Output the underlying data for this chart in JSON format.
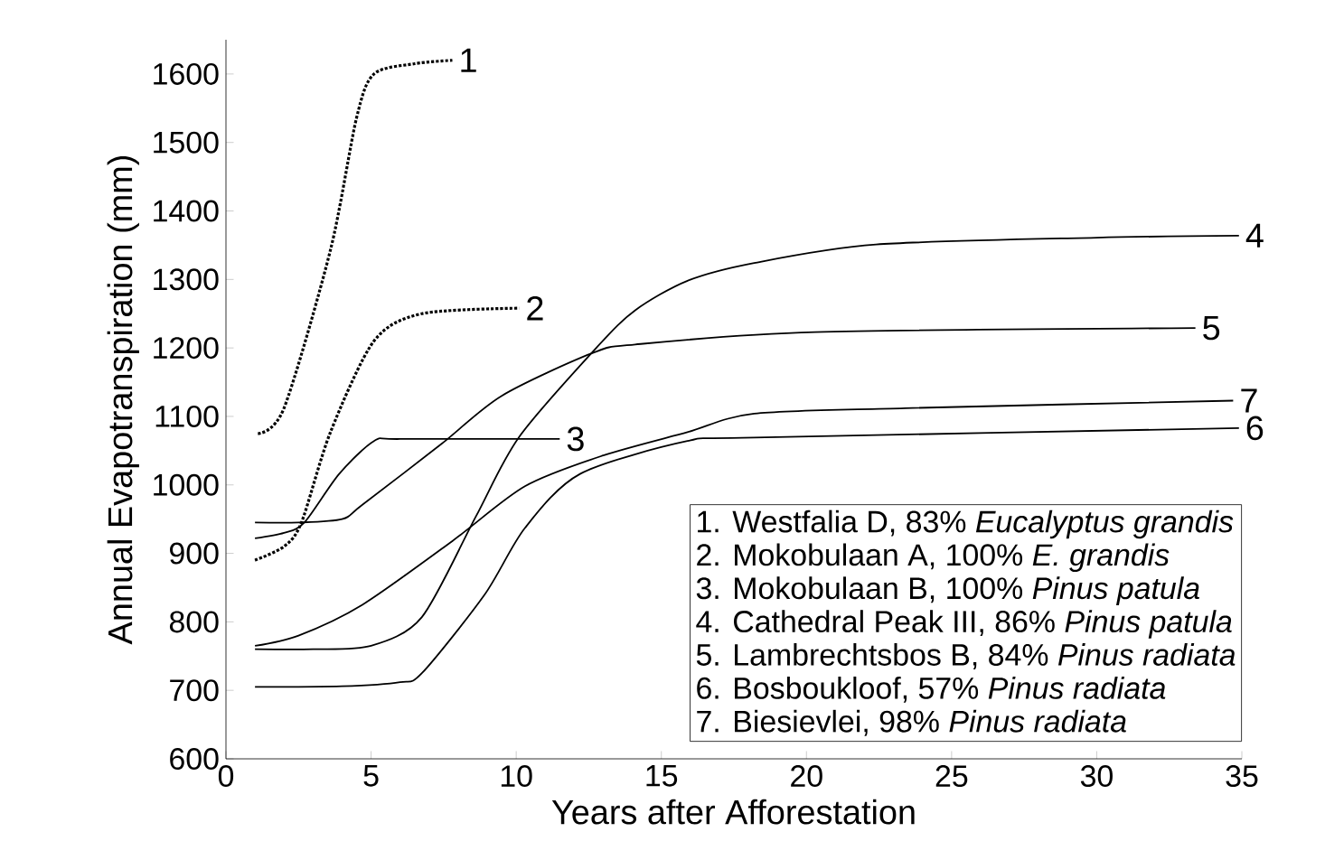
{
  "chart_data": {
    "type": "line",
    "xlabel": "Years after Afforestation",
    "ylabel": "Annual Evapotranspiration (mm)",
    "xlim": [
      0,
      35
    ],
    "ylim": [
      600,
      1650
    ],
    "xticks": [
      0,
      5,
      10,
      15,
      20,
      25,
      30,
      35
    ],
    "yticks": [
      600,
      700,
      800,
      900,
      1000,
      1100,
      1200,
      1300,
      1400,
      1500,
      1600
    ],
    "grid": false,
    "legend": false,
    "marker": "none",
    "series": [
      {
        "name": "1",
        "color": "#000000",
        "line_style": "dotted",
        "x": [
          1.1,
          2,
          3.6,
          4.5,
          5.1,
          6.5,
          7.8
        ],
        "values": [
          1075,
          1112,
          1343,
          1536,
          1600,
          1615,
          1620
        ]
      },
      {
        "name": "2",
        "color": "#000000",
        "line_style": "dotted",
        "x": [
          1,
          2,
          2.6,
          3.6,
          5.1,
          6.75,
          10.1
        ],
        "values": [
          890,
          910,
          945,
          1077,
          1210,
          1250,
          1258
        ]
      },
      {
        "name": "3",
        "color": "#000000",
        "line_style": "solid",
        "x": [
          1,
          2,
          2.7,
          3.9,
          5.1,
          6,
          11.5
        ],
        "values": [
          922,
          930,
          945,
          1016,
          1064,
          1067,
          1067
        ]
      },
      {
        "name": "4",
        "color": "#000000",
        "line_style": "solid",
        "x": [
          1,
          3,
          5,
          6.75,
          8.6,
          10.1,
          12.8,
          14.1,
          15.9,
          18.2,
          22.4,
          30,
          34.9
        ],
        "values": [
          760,
          760,
          765,
          807,
          953,
          1070,
          1202,
          1255,
          1298,
          1324,
          1351,
          1361,
          1364
        ]
      },
      {
        "name": "5",
        "color": "#000000",
        "line_style": "solid",
        "x": [
          1,
          2.5,
          4,
          4.7,
          7.4,
          9.5,
          12.6,
          14.1,
          20.3,
          33.4
        ],
        "values": [
          945,
          945,
          950,
          971,
          1059,
          1130,
          1192,
          1205,
          1223,
          1229
        ]
      },
      {
        "name": "6",
        "color": "#000000",
        "line_style": "solid",
        "x": [
          1,
          4,
          6,
          6.75,
          8.9,
          10.3,
          12.2,
          15.9,
          18.2,
          34.9
        ],
        "values": [
          705,
          706,
          712,
          725,
          839,
          937,
          1016,
          1064,
          1069,
          1083
        ]
      },
      {
        "name": "7",
        "color": "#000000",
        "line_style": "solid",
        "x": [
          1,
          2.5,
          4.7,
          7.8,
          10.3,
          13,
          15.9,
          18.2,
          23.4,
          34.7
        ],
        "values": [
          765,
          780,
          825,
          918,
          998,
          1043,
          1077,
          1104,
          1112,
          1123
        ]
      }
    ],
    "annotations": [
      "1. Westfalia D, 83% *Eucalyptus grandis*",
      "2. Mokobulaan A, 100% *E. grandis*",
      "3. Mokobulaan B, 100% *Pinus patula*",
      "4. Cathedral Peak III, 86% *Pinus patula*",
      "5. Lambrechtsbos B, 84% *Pinus radiata*",
      "6. Bosboukloof, 57% *Pinus radiata*",
      "7. Biesievlei, 98% *Pinus radiata*"
    ]
  }
}
